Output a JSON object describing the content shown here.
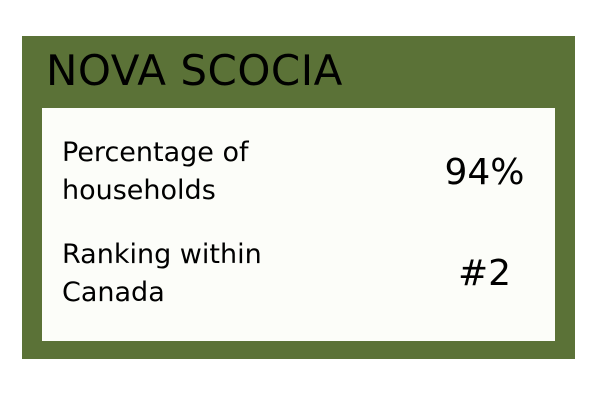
{
  "card": {
    "title": "NOVA SCOCIA",
    "background_color": "#5b7237",
    "panel_color": "#fcfdf9"
  },
  "stats": [
    {
      "label_line1": "Percentage of",
      "label_line2": "households",
      "value": "94%"
    },
    {
      "label_line1": "Ranking within",
      "label_line2": "Canada",
      "value": "#2"
    }
  ]
}
